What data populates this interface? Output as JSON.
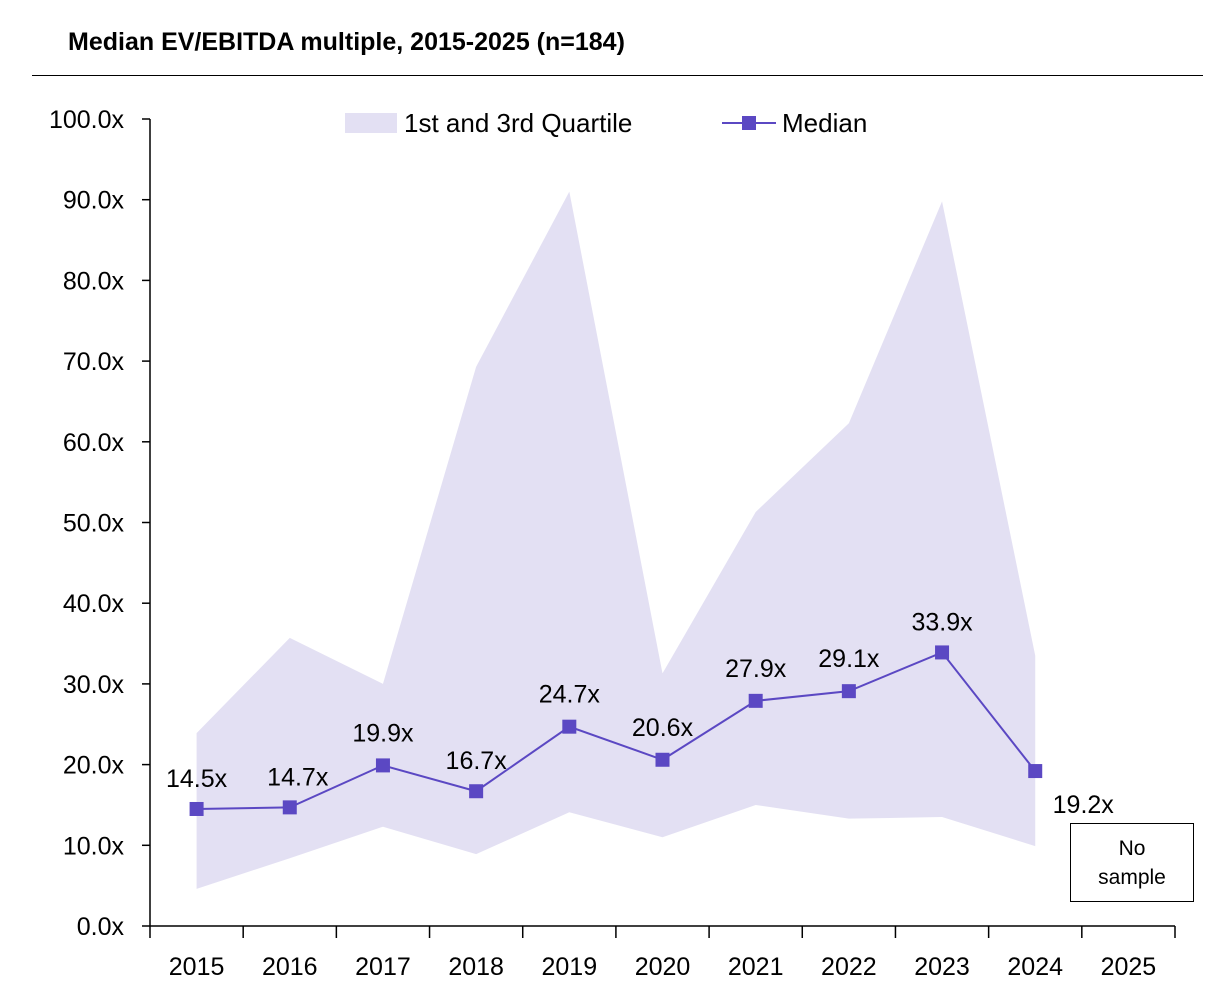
{
  "chart_data": {
    "type": "line",
    "title": "Median EV/EBITDA multiple, 2015-2025 (n=184)",
    "xlabel": "",
    "ylabel": "",
    "ylim": [
      0,
      100
    ],
    "yticks": [
      "0.0x",
      "10.0x",
      "20.0x",
      "30.0x",
      "40.0x",
      "50.0x",
      "60.0x",
      "70.0x",
      "80.0x",
      "90.0x",
      "100.0x"
    ],
    "categories": [
      "2015",
      "2016",
      "2017",
      "2018",
      "2019",
      "2020",
      "2021",
      "2022",
      "2023",
      "2024",
      "2025"
    ],
    "legend": {
      "placement": "top",
      "area_label": "1st and 3rd Quartile",
      "line_label": "Median"
    },
    "series": [
      {
        "name": "Median",
        "values": [
          14.5,
          14.7,
          19.9,
          16.7,
          24.7,
          20.6,
          27.9,
          29.1,
          33.9,
          19.2,
          null
        ],
        "labels": [
          "14.5x",
          "14.7x",
          "19.9x",
          "16.7x",
          "24.7x",
          "20.6x",
          "27.9x",
          "29.1x",
          "33.9x",
          "19.2x",
          ""
        ]
      },
      {
        "name": "3rd Quartile",
        "values": [
          23.9,
          35.7,
          30.0,
          69.3,
          91.0,
          31.3,
          51.3,
          62.3,
          89.8,
          33.5,
          null
        ]
      },
      {
        "name": "1st Quartile",
        "values": [
          4.6,
          8.4,
          12.3,
          8.9,
          14.1,
          11.0,
          15.0,
          13.3,
          13.5,
          9.9,
          null
        ]
      }
    ],
    "annotation": {
      "line1": "No",
      "line2": "sample"
    },
    "colors": {
      "line": "#5b48c3",
      "area": "#e3e0f3"
    }
  }
}
